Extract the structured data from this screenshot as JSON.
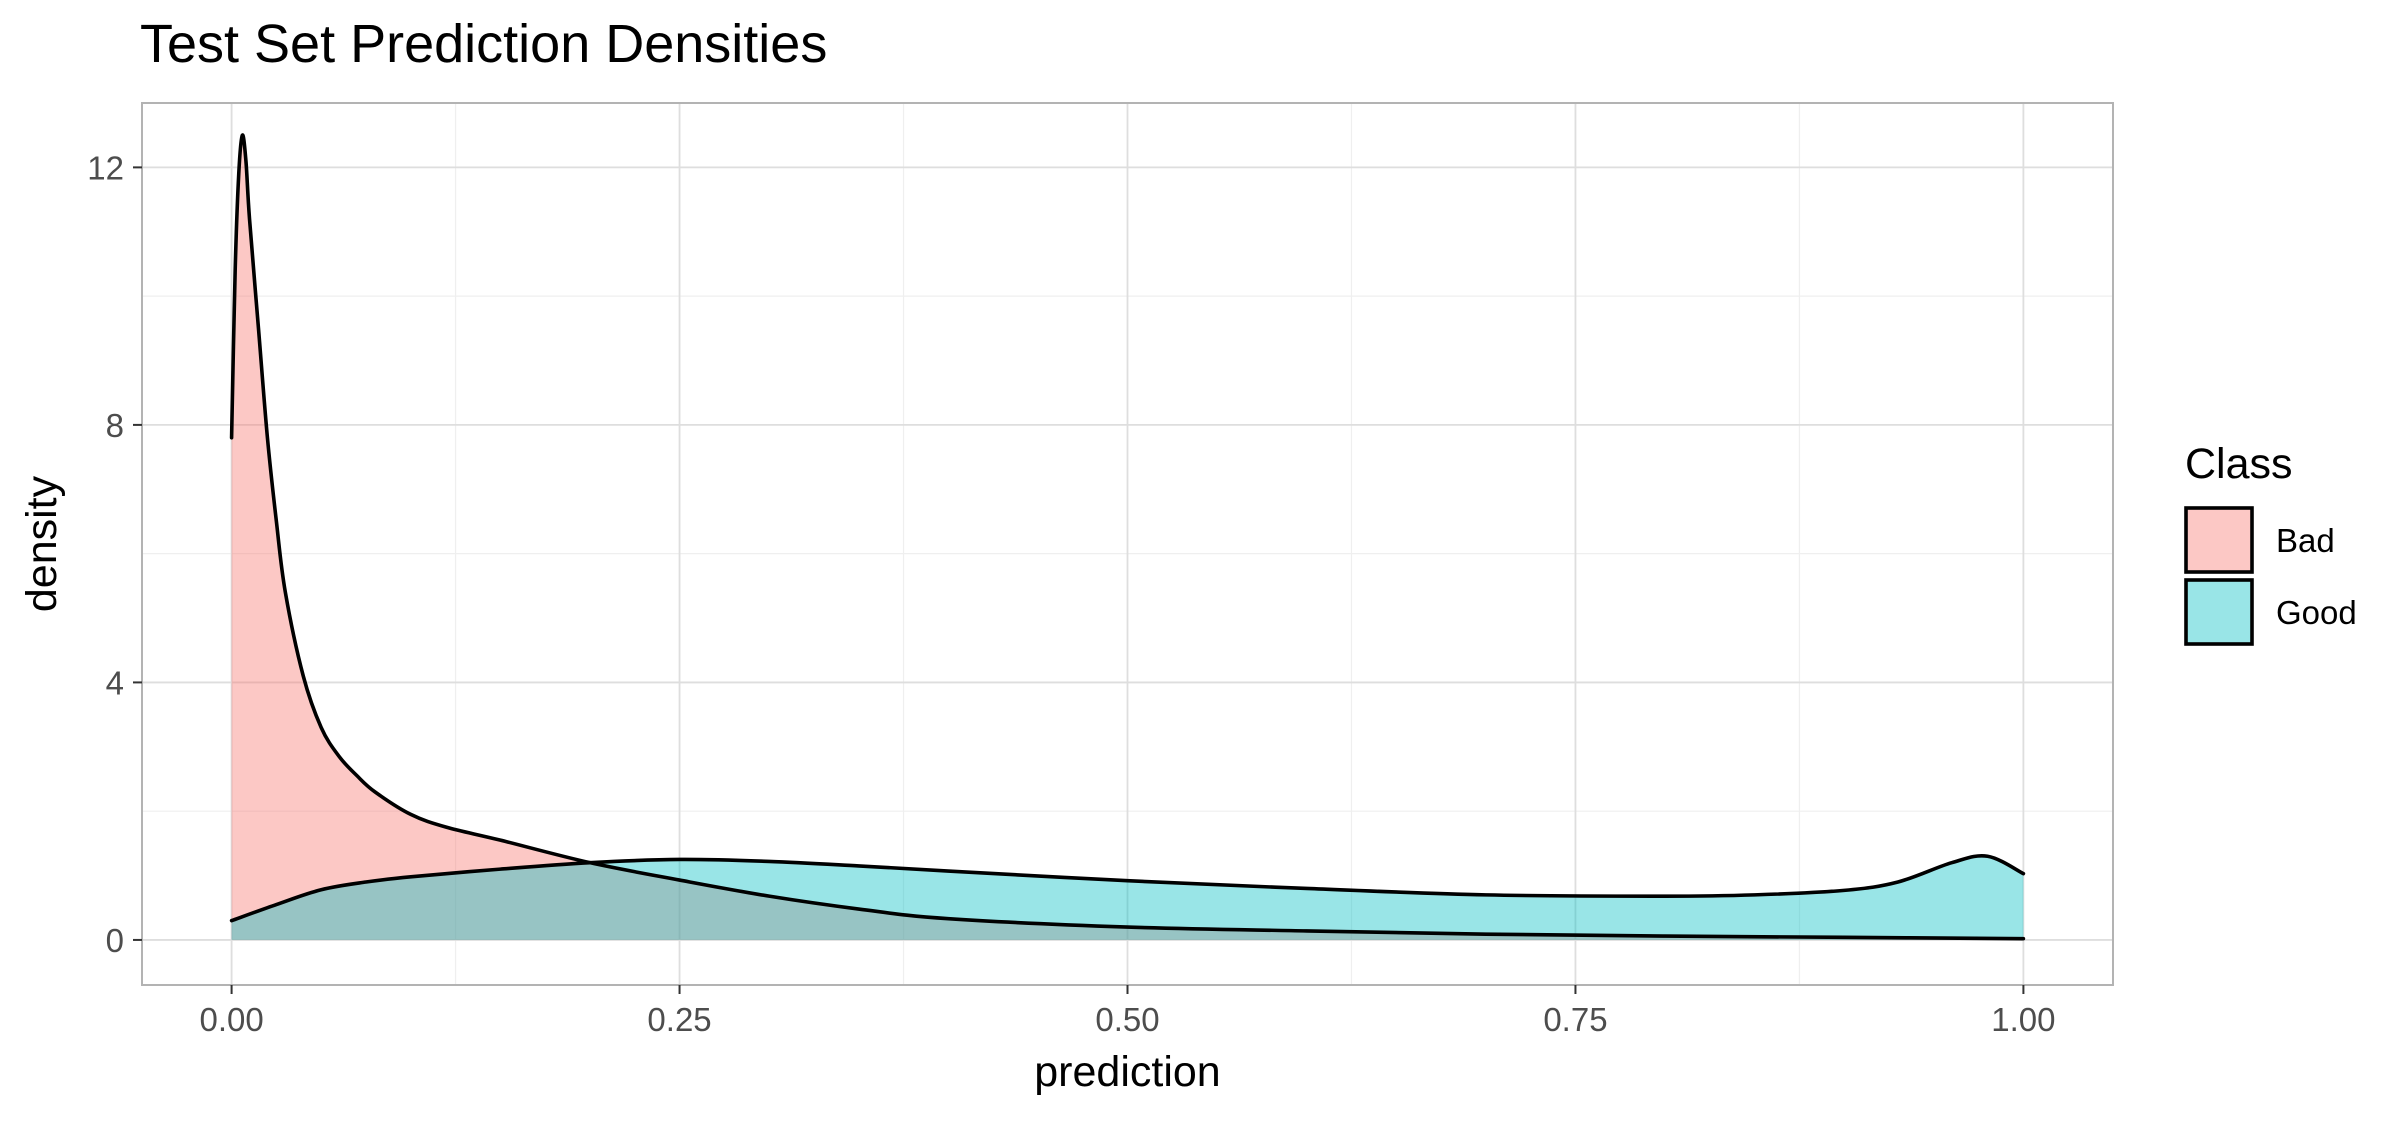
{
  "chart_data": {
    "type": "area",
    "title": "Test Set Prediction Densities",
    "xlabel": "prediction",
    "ylabel": "density",
    "xlim": [
      -0.05,
      1.05
    ],
    "ylim": [
      -0.7,
      13.0
    ],
    "x_ticks": [
      0.0,
      0.25,
      0.5,
      0.75,
      1.0
    ],
    "x_tick_labels": [
      "0.00",
      "0.25",
      "0.50",
      "0.75",
      "1.00"
    ],
    "y_ticks": [
      0,
      4,
      8,
      12
    ],
    "y_tick_labels": [
      "0",
      "4",
      "8",
      "12"
    ],
    "x_minor_ticks": [
      0.125,
      0.375,
      0.625,
      0.875
    ],
    "y_minor_ticks": [
      2,
      6,
      10
    ],
    "grid": true,
    "legend": {
      "title": "Class",
      "position": "right",
      "entries": [
        {
          "label": "Bad",
          "color": "#F8766D"
        },
        {
          "label": "Good",
          "color": "#00BFC4"
        }
      ]
    },
    "fill_alpha": 0.4,
    "series": [
      {
        "name": "Bad",
        "color": "#F8766D",
        "x": [
          0.0,
          0.002,
          0.004,
          0.006,
          0.008,
          0.01,
          0.015,
          0.02,
          0.025,
          0.03,
          0.04,
          0.05,
          0.06,
          0.07,
          0.08,
          0.1,
          0.12,
          0.15,
          0.2,
          0.25,
          0.3,
          0.35,
          0.4,
          0.5,
          0.6,
          0.7,
          0.8,
          0.9,
          1.0
        ],
        "y": [
          7.8,
          10.4,
          11.9,
          12.5,
          12.1,
          11.2,
          9.5,
          7.8,
          6.5,
          5.4,
          4.1,
          3.3,
          2.85,
          2.55,
          2.3,
          1.95,
          1.75,
          1.55,
          1.2,
          0.93,
          0.68,
          0.48,
          0.33,
          0.2,
          0.14,
          0.09,
          0.06,
          0.04,
          0.02
        ]
      },
      {
        "name": "Good",
        "color": "#00BFC4",
        "x": [
          0.0,
          0.025,
          0.05,
          0.075,
          0.1,
          0.15,
          0.2,
          0.25,
          0.3,
          0.35,
          0.4,
          0.5,
          0.6,
          0.7,
          0.8,
          0.85,
          0.9,
          0.93,
          0.96,
          0.98,
          1.0
        ],
        "y": [
          0.3,
          0.55,
          0.78,
          0.9,
          0.98,
          1.1,
          1.2,
          1.25,
          1.22,
          1.15,
          1.07,
          0.92,
          0.8,
          0.7,
          0.68,
          0.7,
          0.77,
          0.9,
          1.2,
          1.3,
          1.03
        ]
      }
    ]
  }
}
